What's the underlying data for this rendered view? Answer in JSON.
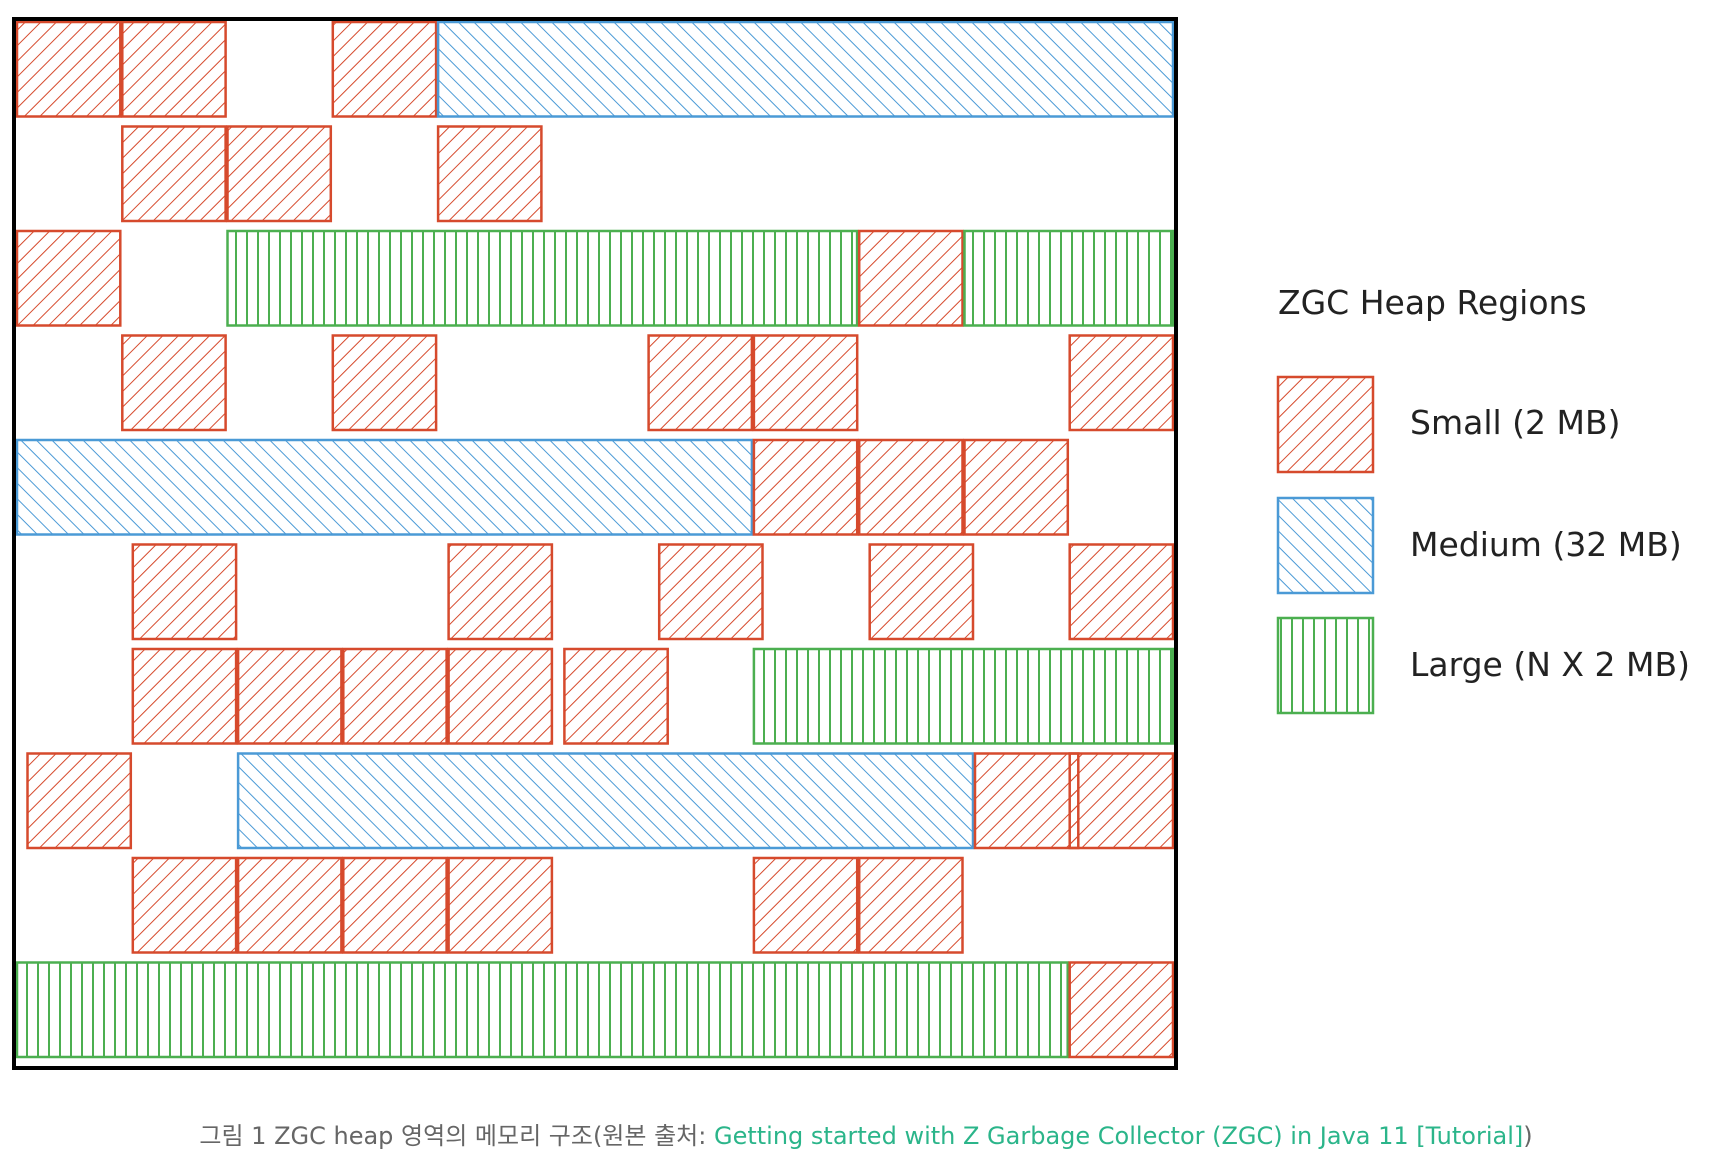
{
  "legend": {
    "title": "ZGC Heap Regions",
    "items": [
      {
        "key": "small",
        "label": "Small (2 MB)",
        "color": "#d64a2d",
        "pattern": "diagonal-up"
      },
      {
        "key": "medium",
        "label": "Medium (32 MB)",
        "color": "#4b9ad6",
        "pattern": "diagonal-down"
      },
      {
        "key": "large",
        "label": "Large (N X 2 MB)",
        "color": "#4caf50",
        "pattern": "vertical"
      }
    ]
  },
  "heap_layout": {
    "grid_columns": 11,
    "grid_rows": 10,
    "rows": [
      [
        {
          "t": "small",
          "c": 0
        },
        {
          "t": "small",
          "c": 1
        },
        {
          "t": "small",
          "c": 3
        },
        {
          "t": "medium",
          "c": 4,
          "span": 7
        }
      ],
      [
        {
          "t": "small",
          "c": 1
        },
        {
          "t": "small",
          "c": 2
        },
        {
          "t": "small",
          "c": 4
        }
      ],
      [
        {
          "t": "small",
          "c": 0
        },
        {
          "t": "large",
          "c": 2,
          "span": 6
        },
        {
          "t": "small",
          "c": 8
        },
        {
          "t": "large",
          "c": 9,
          "span": 2
        }
      ],
      [
        {
          "t": "small",
          "c": 1
        },
        {
          "t": "small",
          "c": 3
        },
        {
          "t": "small",
          "c": 6
        },
        {
          "t": "small",
          "c": 7
        },
        {
          "t": "small",
          "c": 10
        }
      ],
      [
        {
          "t": "medium",
          "c": 0,
          "span": 7
        },
        {
          "t": "small",
          "c": 7
        },
        {
          "t": "small",
          "c": 8
        },
        {
          "t": "small",
          "c": 9
        }
      ],
      [
        {
          "t": "small",
          "c": 1.1
        },
        {
          "t": "small",
          "c": 4.1
        },
        {
          "t": "small",
          "c": 6.1
        },
        {
          "t": "small",
          "c": 8.1
        },
        {
          "t": "small",
          "c": 10
        }
      ],
      [
        {
          "t": "small",
          "c": 1.1
        },
        {
          "t": "small",
          "c": 2.1
        },
        {
          "t": "small",
          "c": 3.1
        },
        {
          "t": "small",
          "c": 4.1
        },
        {
          "t": "small",
          "c": 5.2
        },
        {
          "t": "large",
          "c": 7,
          "span": 4
        }
      ],
      [
        {
          "t": "small",
          "c": 0.1
        },
        {
          "t": "medium",
          "c": 2.1,
          "span": 7
        },
        {
          "t": "small",
          "c": 9.1
        },
        {
          "t": "small",
          "c": 10
        }
      ],
      [
        {
          "t": "small",
          "c": 1.1
        },
        {
          "t": "small",
          "c": 2.1
        },
        {
          "t": "small",
          "c": 3.1
        },
        {
          "t": "small",
          "c": 4.1
        },
        {
          "t": "small",
          "c": 7
        },
        {
          "t": "small",
          "c": 8
        }
      ],
      [
        {
          "t": "large",
          "c": 0,
          "span": 10
        },
        {
          "t": "small",
          "c": 10
        }
      ]
    ]
  },
  "caption": {
    "prefix": "그림 1 ZGC heap 영역의 메모리 구조(원본 출처: ",
    "link_text": "Getting started with Z Garbage Collector (ZGC) in Java 11 [Tutorial]",
    "suffix": ")"
  }
}
